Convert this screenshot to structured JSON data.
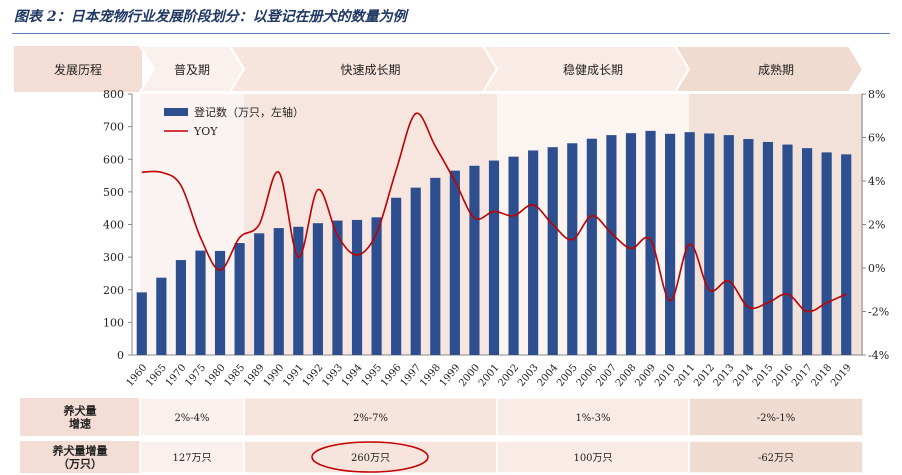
{
  "title": "图表 2：日本宠物行业发展阶段划分：以登记在册犬的数量为例",
  "stages": {
    "header": "发展历程",
    "items": [
      {
        "label": "普及期"
      },
      {
        "label": "快速成长期"
      },
      {
        "label": "稳健成长期"
      },
      {
        "label": "成熟期"
      }
    ]
  },
  "legend": {
    "bar": "登记数（万只，左轴）",
    "line": "YOY"
  },
  "colors": {
    "bar": "#2e4f8f",
    "line": "#c00000",
    "band1": "#faf3f1",
    "band2": "#f7e6df",
    "band3": "#fbf4f1",
    "band4": "#f1e1d9"
  },
  "chart_data": {
    "type": "bar",
    "categories": [
      "1960",
      "1965",
      "1970",
      "1975",
      "1980",
      "1985",
      "1989",
      "1990",
      "1991",
      "1992",
      "1993",
      "1994",
      "1995",
      "1996",
      "1997",
      "1998",
      "1999",
      "2000",
      "2001",
      "2002",
      "2003",
      "2004",
      "2005",
      "2006",
      "2007",
      "2008",
      "2009",
      "2010",
      "2011",
      "2012",
      "2013",
      "2014",
      "2015",
      "2016",
      "2017",
      "2018",
      "2019"
    ],
    "series": [
      {
        "name": "登记数（万只，左轴）",
        "axis": "left",
        "values": [
          192,
          237,
          291,
          320,
          319,
          343,
          373,
          389,
          393,
          404,
          412,
          414,
          422,
          482,
          513,
          543,
          565,
          580,
          596,
          608,
          627,
          637,
          649,
          663,
          674,
          680,
          687,
          678,
          683,
          679,
          674,
          662,
          653,
          645,
          634,
          621,
          615
        ]
      },
      {
        "name": "YOY",
        "axis": "right",
        "values": [
          4.4,
          4.4,
          3.8,
          1.4,
          -0.1,
          1.4,
          2.0,
          4.4,
          0.5,
          3.6,
          1.5,
          0.6,
          1.6,
          4.5,
          7.1,
          5.6,
          4.0,
          2.3,
          2.6,
          2.4,
          2.9,
          2.0,
          1.3,
          2.4,
          1.6,
          0.9,
          1.3,
          -1.5,
          1.1,
          -1.0,
          -0.6,
          -1.8,
          -1.6,
          -1.2,
          -2.0,
          -1.6,
          -1.2
        ]
      }
    ],
    "y_left": {
      "min": 0,
      "max": 800,
      "ticks": [
        "0",
        "100",
        "200",
        "300",
        "400",
        "500",
        "600",
        "700",
        "800"
      ]
    },
    "y_right": {
      "min": -4,
      "max": 8,
      "ticks": [
        "-4%",
        "-2%",
        "0%",
        "2%",
        "4%",
        "6%",
        "8%"
      ]
    }
  },
  "table": {
    "rows": [
      {
        "header": "养犬量\n增速",
        "cells": [
          "2%-4%",
          "2%-7%",
          "1%-3%",
          "-2%-1%"
        ]
      },
      {
        "header": "养犬量增量\n（万只）",
        "cells": [
          "127万只",
          "260万只",
          "100万只",
          "-62万只"
        ]
      }
    ]
  }
}
